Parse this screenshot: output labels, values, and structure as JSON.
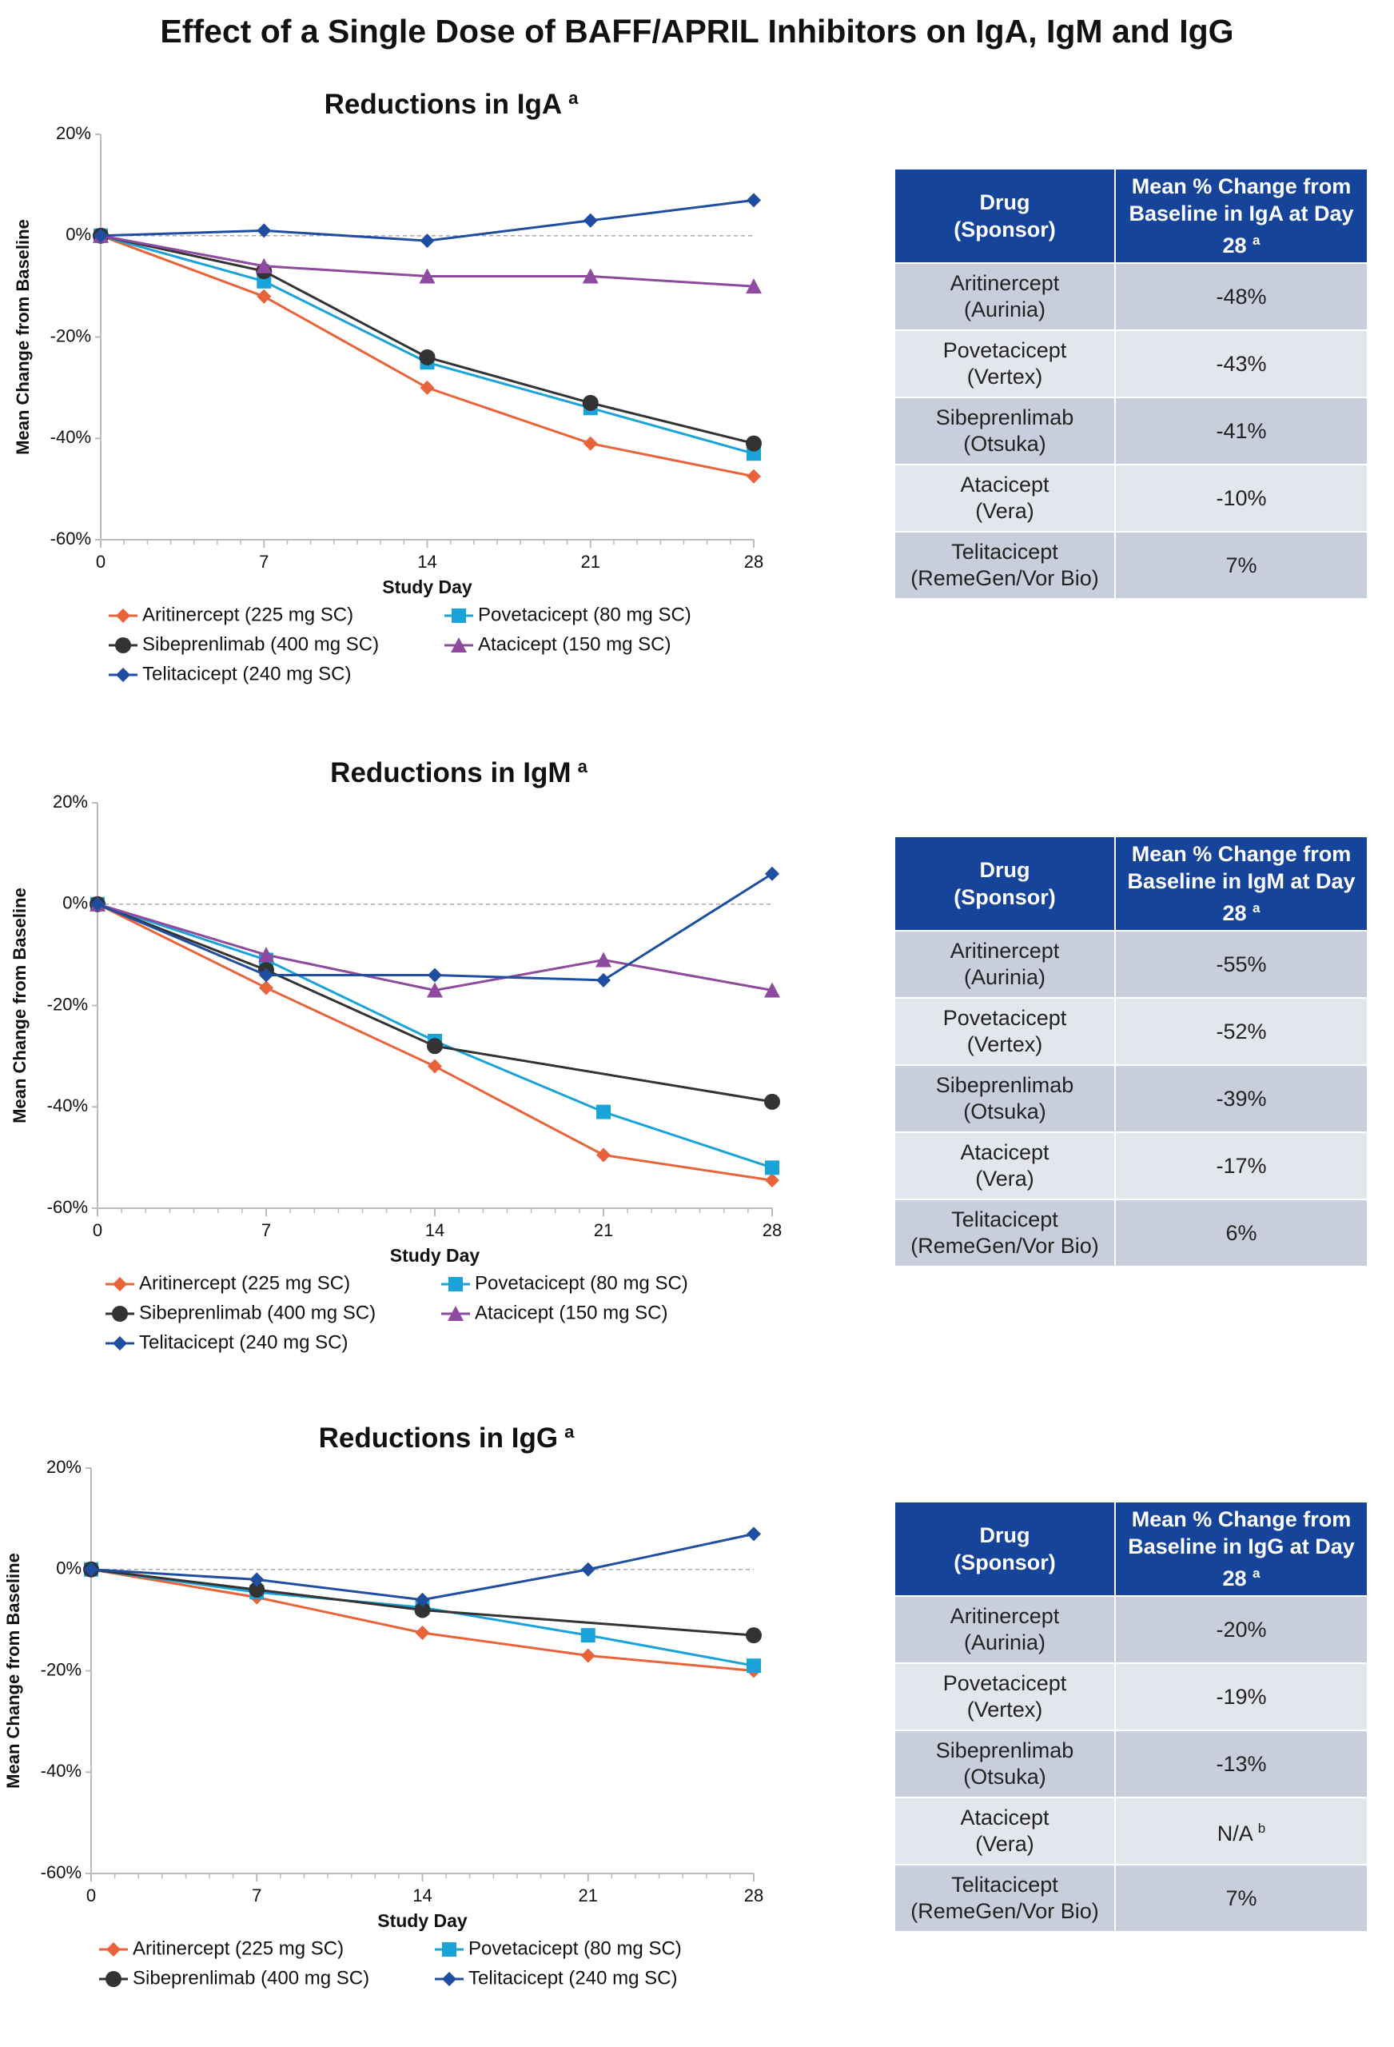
{
  "title": "Effect of a Single Dose of BAFF/APRIL Inhibitors on IgA, IgM and IgG",
  "chart_data": [
    {
      "type": "line",
      "title": "Reductions in IgA",
      "title_note": "a",
      "x_label": "Study Day",
      "y_label": "Mean Change from Baseline",
      "x": [
        0,
        7,
        14,
        21,
        28
      ],
      "xlim": [
        0,
        28
      ],
      "xticks": [
        0,
        7,
        14,
        21,
        28
      ],
      "ylim": [
        -60,
        20
      ],
      "yticks": [
        {
          "value": -60,
          "label": "-60%"
        },
        {
          "value": -40,
          "label": "-40%"
        },
        {
          "value": -20,
          "label": "-20%"
        },
        {
          "value": 0,
          "label": "0%"
        },
        {
          "value": 20,
          "label": "20%"
        }
      ],
      "zero_line": true,
      "series": [
        {
          "name": "Aritinercept (225 mg SC)",
          "color": "#e8633a",
          "marker": "diamond",
          "values": [
            0,
            -12,
            -30,
            -41,
            -47.5
          ]
        },
        {
          "name": "Povetacicept (80 mg SC)",
          "color": "#1aa3d8",
          "marker": "square",
          "values": [
            0,
            -9,
            -25,
            -34,
            -43
          ]
        },
        {
          "name": "Sibeprenlimab (400 mg SC)",
          "color": "#333333",
          "marker": "circle",
          "values": [
            0,
            -7,
            -24,
            -33,
            -41
          ]
        },
        {
          "name": "Atacicept (150 mg SC)",
          "color": "#8e4a9e",
          "marker": "triangle",
          "values": [
            0,
            -6,
            -8,
            -8,
            -10
          ]
        },
        {
          "name": "Telitacicept (240 mg SC)",
          "color": "#1f4ea0",
          "marker": "diamond",
          "values": [
            0,
            1,
            -1,
            3,
            7
          ]
        }
      ]
    },
    {
      "type": "line",
      "title": "Reductions in IgM",
      "title_note": "a",
      "x_label": "Study Day",
      "y_label": "Mean Change from Baseline",
      "x": [
        0,
        7,
        14,
        21,
        28
      ],
      "xlim": [
        0,
        28
      ],
      "xticks": [
        0,
        7,
        14,
        21,
        28
      ],
      "ylim": [
        -60,
        20
      ],
      "yticks": [
        {
          "value": -60,
          "label": "-60%"
        },
        {
          "value": -40,
          "label": "-40%"
        },
        {
          "value": -20,
          "label": "-20%"
        },
        {
          "value": 0,
          "label": "0%"
        },
        {
          "value": 20,
          "label": "20%"
        }
      ],
      "zero_line": true,
      "series": [
        {
          "name": "Aritinercept (225 mg SC)",
          "color": "#e8633a",
          "marker": "diamond",
          "values": [
            0,
            -16.5,
            -32,
            -49.5,
            -54.5
          ]
        },
        {
          "name": "Povetacicept (80 mg SC)",
          "color": "#1aa3d8",
          "marker": "square",
          "values": [
            0,
            -11,
            -27,
            -41,
            -52
          ]
        },
        {
          "name": "Sibeprenlimab (400 mg SC)",
          "color": "#333333",
          "marker": "circle",
          "x": [
            0,
            7,
            14,
            28
          ],
          "values": [
            0,
            -13,
            -28,
            -39
          ]
        },
        {
          "name": "Atacicept (150 mg SC)",
          "color": "#8e4a9e",
          "marker": "triangle",
          "values": [
            0,
            -10,
            -17,
            -11,
            -17
          ]
        },
        {
          "name": "Telitacicept (240 mg SC)",
          "color": "#1f4ea0",
          "marker": "diamond",
          "values": [
            0,
            -14,
            -14,
            -15,
            6
          ]
        }
      ]
    },
    {
      "type": "line",
      "title": "Reductions in IgG",
      "title_note": "a",
      "x_label": "Study Day",
      "y_label": "Mean Change from Baseline",
      "x": [
        0,
        7,
        14,
        21,
        28
      ],
      "xlim": [
        0,
        28
      ],
      "xticks": [
        0,
        7,
        14,
        21,
        28
      ],
      "ylim": [
        -60,
        20
      ],
      "yticks": [
        {
          "value": -60,
          "label": "-60%"
        },
        {
          "value": -40,
          "label": "-40%"
        },
        {
          "value": -20,
          "label": "-20%"
        },
        {
          "value": 0,
          "label": "0%"
        },
        {
          "value": 20,
          "label": "20%"
        }
      ],
      "zero_line": true,
      "series": [
        {
          "name": "Aritinercept (225 mg SC)",
          "color": "#e8633a",
          "marker": "diamond",
          "values": [
            0,
            -5.5,
            -12.5,
            -17,
            -20
          ]
        },
        {
          "name": "Povetacicept (80 mg SC)",
          "color": "#1aa3d8",
          "marker": "square",
          "values": [
            0,
            -4.5,
            -7.5,
            -13,
            -19
          ]
        },
        {
          "name": "Sibeprenlimab (400 mg SC)",
          "color": "#333333",
          "marker": "circle",
          "x": [
            0,
            7,
            14,
            28
          ],
          "values": [
            0,
            -4,
            -8,
            -13
          ]
        },
        {
          "name": "Telitacicept (240 mg SC)",
          "color": "#1f4ea0",
          "marker": "diamond",
          "values": [
            0,
            -2,
            -6,
            0,
            7
          ]
        }
      ]
    }
  ],
  "tables": [
    {
      "header": {
        "drug": "Drug",
        "sponsor": "(Sponsor)",
        "change": "Mean % Change from Baseline in IgA at Day 28",
        "note": "a"
      },
      "rows": [
        {
          "drug": "Aritinercept",
          "sponsor": "(Aurinia)",
          "change": "-48%"
        },
        {
          "drug": "Povetacicept",
          "sponsor": "(Vertex)",
          "change": "-43%"
        },
        {
          "drug": "Sibeprenlimab",
          "sponsor": "(Otsuka)",
          "change": "-41%"
        },
        {
          "drug": "Atacicept",
          "sponsor": "(Vera)",
          "change": "-10%"
        },
        {
          "drug": "Telitacicept",
          "sponsor": "(RemeGen/Vor Bio)",
          "change": "7%"
        }
      ]
    },
    {
      "header": {
        "drug": "Drug",
        "sponsor": "(Sponsor)",
        "change": "Mean % Change from Baseline in IgM at Day 28",
        "note": "a"
      },
      "rows": [
        {
          "drug": "Aritinercept",
          "sponsor": "(Aurinia)",
          "change": "-55%"
        },
        {
          "drug": "Povetacicept",
          "sponsor": "(Vertex)",
          "change": "-52%"
        },
        {
          "drug": "Sibeprenlimab",
          "sponsor": "(Otsuka)",
          "change": "-39%"
        },
        {
          "drug": "Atacicept",
          "sponsor": "(Vera)",
          "change": "-17%"
        },
        {
          "drug": "Telitacicept",
          "sponsor": "(RemeGen/Vor Bio)",
          "change": "6%"
        }
      ]
    },
    {
      "header": {
        "drug": "Drug",
        "sponsor": "(Sponsor)",
        "change": "Mean % Change from Baseline in IgG at Day 28",
        "note": "a"
      },
      "rows": [
        {
          "drug": "Aritinercept",
          "sponsor": "(Aurinia)",
          "change": "-20%"
        },
        {
          "drug": "Povetacicept",
          "sponsor": "(Vertex)",
          "change": "-19%"
        },
        {
          "drug": "Sibeprenlimab",
          "sponsor": "(Otsuka)",
          "change": "-13%"
        },
        {
          "drug": "Atacicept",
          "sponsor": "(Vera)",
          "change": "N/A",
          "note": "b"
        },
        {
          "drug": "Telitacicept",
          "sponsor": "(RemeGen/Vor Bio)",
          "change": "7%"
        }
      ]
    }
  ]
}
